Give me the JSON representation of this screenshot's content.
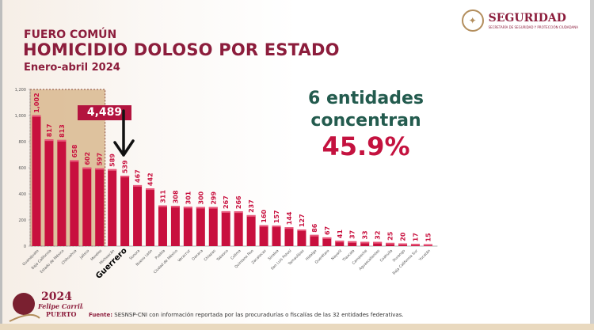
{
  "header": {
    "category": "FUERO COMÚN",
    "title": "HOMICIDIO DOLOSO POR ESTADO",
    "period": "Enero-abril 2024"
  },
  "logo": {
    "name": "SEGURIDAD",
    "subtitle": "SECRETARÍA DE SEGURIDAD Y PROTECCIÓN CIUDADANA"
  },
  "highlight": {
    "line1": "6 entidades",
    "line2": "concentran",
    "percent": "45.9%"
  },
  "callout": {
    "value": "4,489"
  },
  "footer": {
    "source_label": "Fuente:",
    "source_text": "SESNSP-CNI con información reportada por las procuradurías o fiscalías de las 32 entidades federativas.",
    "logo_text": "2024 Felipe Carrillo PUERTO"
  },
  "colors": {
    "bar": "#c8103e",
    "shade": "#d9b98f",
    "accent_green": "#235b4e",
    "brand": "#8c1d3c"
  },
  "chart_data": {
    "type": "bar",
    "categories": [
      "Guanajuato",
      "Baja California",
      "Estado de México",
      "Chihuahua",
      "Jalisco",
      "Morelos",
      "Michoacán",
      "Guerrero",
      "Sonora",
      "Nuevo León",
      "Puebla",
      "Ciudad de México",
      "Veracruz",
      "Oaxaca",
      "Chiapas",
      "Tabasco",
      "Colima",
      "Quintana Roo",
      "Zacatecas",
      "Sinaloa",
      "San Luis Potosí",
      "Tamaulipas",
      "Hidalgo",
      "Querétaro",
      "Nayarit",
      "Tlaxcala",
      "Campeche",
      "Aguascalientes",
      "Coahuila",
      "Durango",
      "Baja California Sur",
      "Yucatán"
    ],
    "values": [
      1002,
      817,
      813,
      658,
      602,
      597,
      589,
      539,
      467,
      442,
      311,
      308,
      301,
      300,
      299,
      267,
      266,
      237,
      160,
      157,
      144,
      127,
      86,
      67,
      41,
      37,
      33,
      32,
      25,
      20,
      17,
      15
    ],
    "value_labels": [
      "1,002",
      "817",
      "813",
      "658",
      "602",
      "597",
      "589",
      "539",
      "467",
      "442",
      "311",
      "308",
      "301",
      "300",
      "299",
      "267",
      "266",
      "237",
      "160",
      "157",
      "144",
      "127",
      "86",
      "67",
      "41",
      "37",
      "33",
      "32",
      "25",
      "20",
      "17",
      "15"
    ],
    "yticks": [
      0,
      200,
      400,
      600,
      800,
      1000,
      1200
    ],
    "ytick_labels": [
      "0",
      "200",
      "400",
      "600",
      "800",
      "1,000",
      "1,200"
    ],
    "ylim": [
      0,
      1200
    ],
    "highlighted_range": "first 6 categories",
    "emphasized_category": "Guerrero",
    "grid": false
  }
}
